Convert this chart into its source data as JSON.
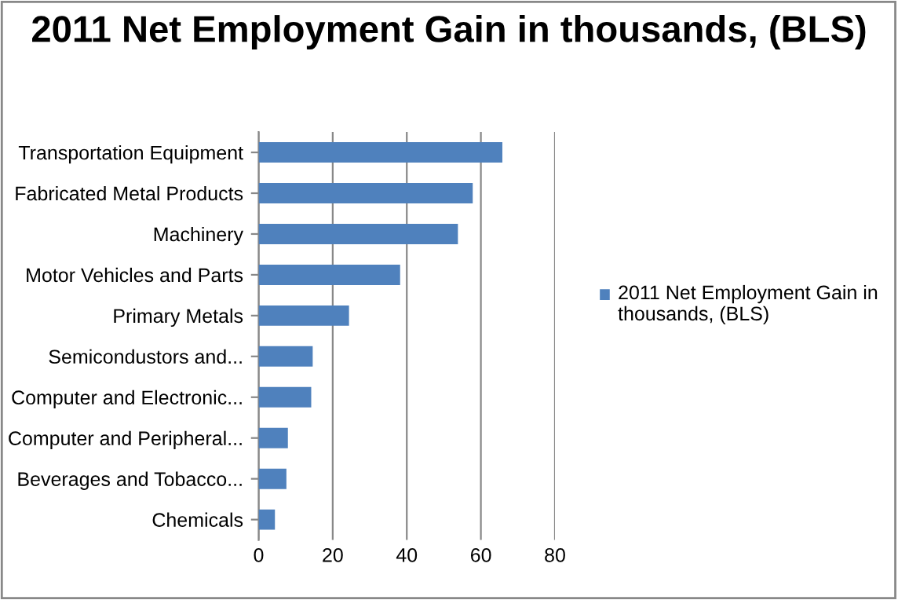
{
  "chart_data": {
    "type": "bar",
    "orientation": "horizontal",
    "title": "2011 Net Employment Gain in thousands, (BLS)",
    "categories": [
      "Transportation Equipment",
      "Fabricated Metal Products",
      "Machinery",
      "Motor Vehicles and Parts",
      "Primary Metals",
      "Semicondustors and...",
      "Computer and Electronic...",
      "Computer and Peripheral...",
      "Beverages and Tobacco...",
      "Chemicals"
    ],
    "series": [
      {
        "name": "2011 Net Employment Gain in thousands, (BLS)",
        "color": "#4f81bd",
        "values": [
          65.8,
          57.8,
          53.8,
          38.2,
          24.4,
          14.6,
          14.2,
          7.9,
          7.5,
          4.4
        ]
      }
    ],
    "xlim": [
      0,
      80
    ],
    "xticks": [
      0,
      20,
      40,
      60,
      80
    ],
    "grid": "x",
    "legend": "right"
  }
}
